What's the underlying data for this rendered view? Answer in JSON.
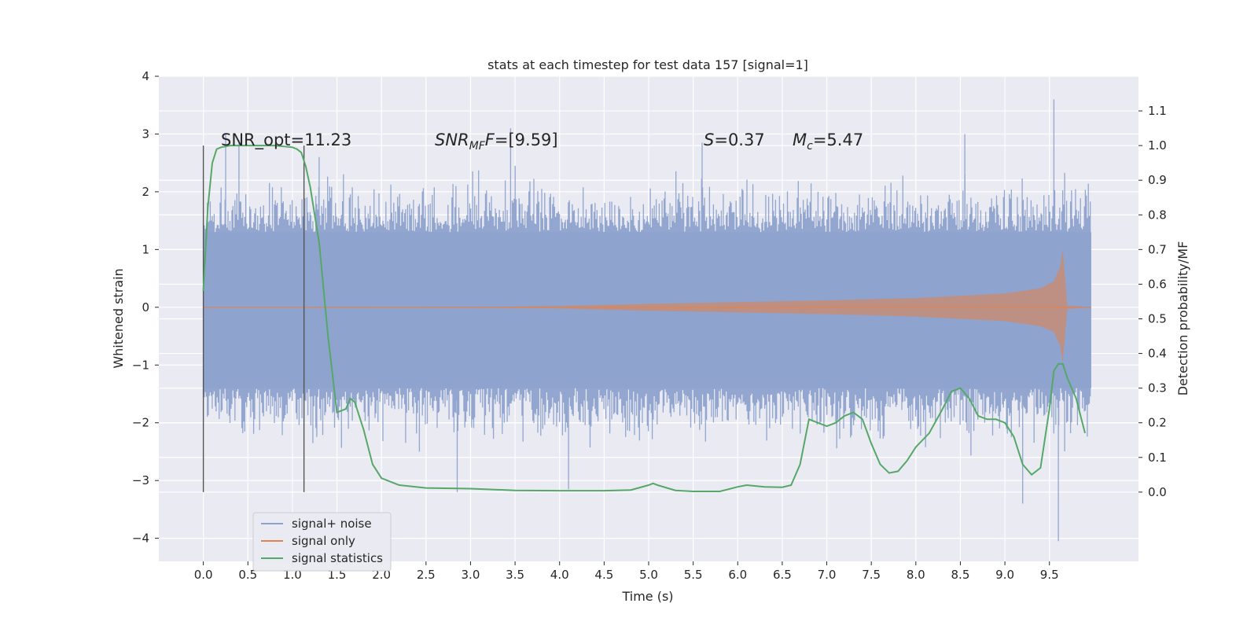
{
  "chart_data": {
    "type": "line",
    "title": "stats at each timestep for test data 157 [signal=1]",
    "xlabel": "Time (s)",
    "ylabel_left": "Whitened strain",
    "ylabel_right": "Detection probability/MF",
    "xlim": [
      -0.5,
      10.5
    ],
    "ylim_left": [
      -4.4,
      4.0
    ],
    "ylim_right": [
      -0.2,
      1.2
    ],
    "x_ticks": [
      "0.0",
      "0.5",
      "1.0",
      "1.5",
      "2.0",
      "2.5",
      "3.0",
      "3.5",
      "4.0",
      "4.5",
      "5.0",
      "5.5",
      "6.0",
      "6.5",
      "7.0",
      "7.5",
      "8.0",
      "8.5",
      "9.0",
      "9.5"
    ],
    "y_ticks_left": [
      "−4",
      "−3",
      "−2",
      "−1",
      "0",
      "1",
      "2",
      "3",
      "4"
    ],
    "y_ticks_right": [
      "0.0",
      "0.1",
      "0.2",
      "0.3",
      "0.4",
      "0.5",
      "0.6",
      "0.7",
      "0.8",
      "0.9",
      "1.0",
      "1.1"
    ],
    "grid": true,
    "legend_position": "lower-left",
    "annotations": {
      "snr_opt": "SNR_opt=11.23",
      "snr_mf_prefix": "SNR",
      "snr_mf_sub": "MF",
      "snr_mf_value": "=[9.59]",
      "s_prefix": "S",
      "s_value": "=0.37",
      "mc_prefix": "M",
      "mc_sub": "c",
      "mc_value": "=5.47"
    },
    "vlines": [
      0.0,
      1.13
    ],
    "colors": {
      "plot_bg": "#eaeaf2",
      "grid": "#ffffff",
      "noise": "#8da2cd",
      "signal": "#dd8452",
      "stats": "#55a868",
      "vline": "#555555"
    },
    "series": [
      {
        "name": "signal+ noise",
        "kind": "noise_band",
        "t_range": [
          0.0,
          9.97
        ],
        "core_envelope": [
          -1.4,
          1.3
        ],
        "extremes_sample": [
          [
            0.25,
            3.0
          ],
          [
            0.4,
            2.9
          ],
          [
            1.3,
            2.6
          ],
          [
            2.85,
            -3.2
          ],
          [
            3.45,
            3.1
          ],
          [
            4.1,
            -3.15
          ],
          [
            5.6,
            2.85
          ],
          [
            8.55,
            3.0
          ],
          [
            9.2,
            -3.4
          ],
          [
            9.55,
            3.6
          ],
          [
            9.6,
            -4.05
          ]
        ]
      },
      {
        "name": "signal only",
        "kind": "chirp",
        "t_range": [
          0.0,
          9.97
        ],
        "merger_time": 9.65,
        "peak_amplitude": 1.0,
        "envelope": [
          [
            0.0,
            0.0
          ],
          [
            3.0,
            0.005
          ],
          [
            4.0,
            0.02
          ],
          [
            5.0,
            0.06
          ],
          [
            6.0,
            0.09
          ],
          [
            7.0,
            0.12
          ],
          [
            8.0,
            0.16
          ],
          [
            9.0,
            0.24
          ],
          [
            9.4,
            0.33
          ],
          [
            9.55,
            0.45
          ],
          [
            9.62,
            0.7
          ],
          [
            9.65,
            1.0
          ],
          [
            9.7,
            0.03
          ],
          [
            9.97,
            0.0
          ]
        ]
      },
      {
        "name": "signal statistics",
        "kind": "line",
        "axis": "right",
        "x": [
          0.0,
          0.05,
          0.1,
          0.15,
          0.2,
          0.3,
          0.5,
          0.8,
          1.0,
          1.05,
          1.1,
          1.15,
          1.2,
          1.3,
          1.4,
          1.5,
          1.6,
          1.65,
          1.7,
          1.8,
          1.9,
          2.0,
          2.2,
          2.5,
          3.0,
          3.5,
          4.0,
          4.5,
          4.8,
          5.0,
          5.05,
          5.1,
          5.3,
          5.5,
          5.8,
          6.0,
          6.1,
          6.3,
          6.5,
          6.6,
          6.7,
          6.8,
          6.9,
          7.0,
          7.1,
          7.2,
          7.3,
          7.4,
          7.5,
          7.6,
          7.7,
          7.8,
          7.9,
          8.0,
          8.15,
          8.3,
          8.4,
          8.5,
          8.6,
          8.7,
          8.8,
          8.9,
          9.0,
          9.1,
          9.2,
          9.3,
          9.4,
          9.5,
          9.55,
          9.6,
          9.65,
          9.7,
          9.8,
          9.9
        ],
        "y": [
          0.58,
          0.82,
          0.95,
          0.99,
          0.995,
          1.0,
          1.0,
          1.0,
          0.995,
          0.99,
          0.98,
          0.94,
          0.88,
          0.72,
          0.45,
          0.23,
          0.24,
          0.27,
          0.26,
          0.18,
          0.08,
          0.04,
          0.02,
          0.012,
          0.01,
          0.005,
          0.004,
          0.004,
          0.006,
          0.02,
          0.025,
          0.02,
          0.005,
          0.002,
          0.002,
          0.015,
          0.02,
          0.015,
          0.014,
          0.02,
          0.08,
          0.21,
          0.2,
          0.19,
          0.2,
          0.22,
          0.23,
          0.21,
          0.14,
          0.08,
          0.055,
          0.06,
          0.09,
          0.13,
          0.17,
          0.24,
          0.29,
          0.3,
          0.27,
          0.22,
          0.21,
          0.21,
          0.2,
          0.16,
          0.08,
          0.05,
          0.07,
          0.24,
          0.35,
          0.37,
          0.37,
          0.33,
          0.27,
          0.17
        ]
      }
    ]
  }
}
